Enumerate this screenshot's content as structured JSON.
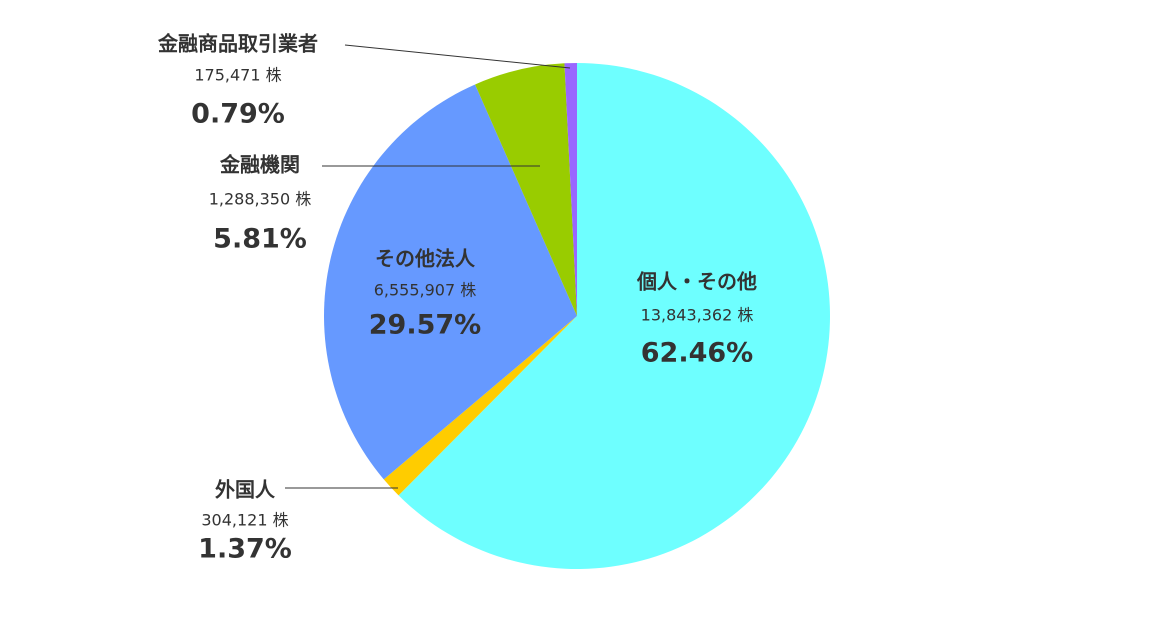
{
  "chart_data": {
    "type": "pie",
    "categories": [
      "個人・その他",
      "外国人",
      "その他法人",
      "金融機関",
      "金融商品取引業者"
    ],
    "values": [
      62.46,
      1.37,
      29.57,
      5.81,
      0.79
    ],
    "value_labels": [
      "62.46%",
      "1.37%",
      "29.57%",
      "5.81%",
      "0.79%"
    ],
    "shares": [
      "13,843,362 株",
      "304,121 株",
      "6,555,907 株",
      "1,288,350 株",
      "175,471 株"
    ],
    "colors": [
      "#6effff",
      "#ffcc00",
      "#6699ff",
      "#99cc00",
      "#9966ff"
    ]
  }
}
